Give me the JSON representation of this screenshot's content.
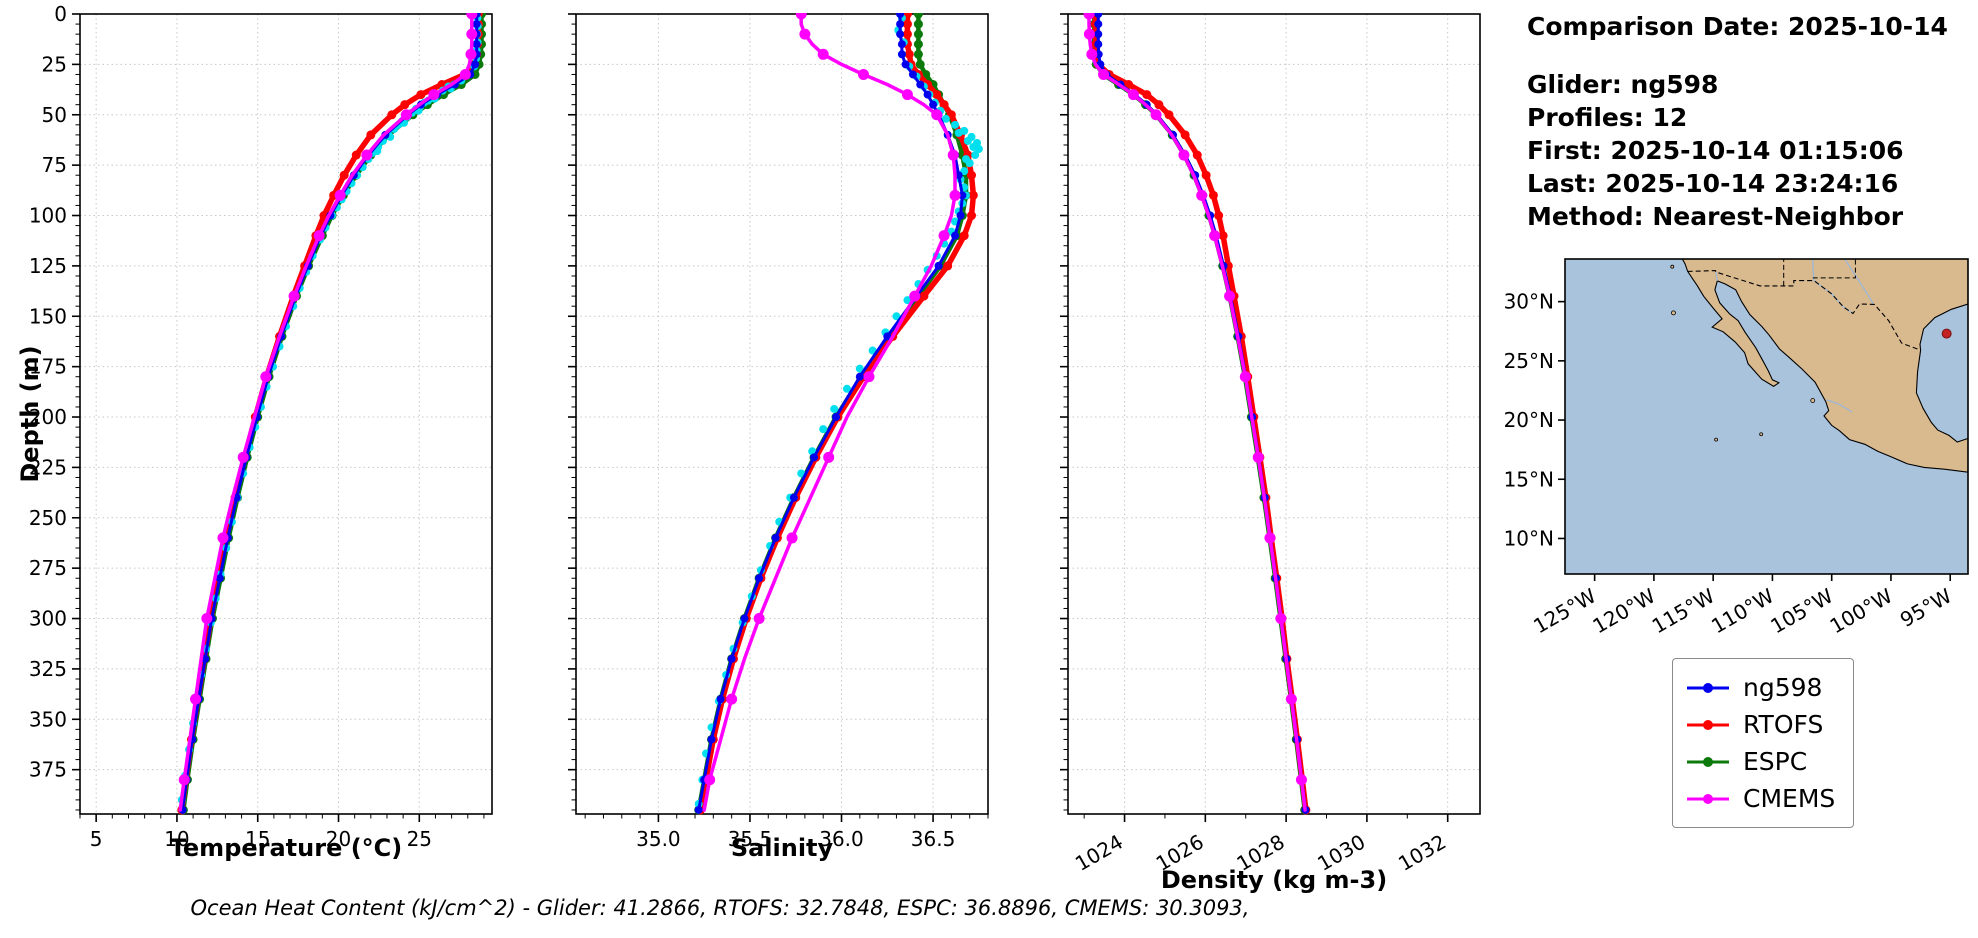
{
  "info": {
    "comparison_date": "Comparison Date: 2025-10-14",
    "glider": "Glider: ng598",
    "profiles": "Profiles: 12",
    "first": "First: 2025-10-14 01:15:06",
    "last": "Last: 2025-10-14 23:24:16",
    "method": "Method: Nearest-Neighbor"
  },
  "caption": "Ocean Heat Content (kJ/cm^2) - Glider: 41.2866,  RTOFS: 32.7848,  ESPC: 36.8896,  CMEMS: 30.3093,",
  "legend": {
    "items": [
      {
        "label": "ng598",
        "color": "#0000ee"
      },
      {
        "label": "RTOFS",
        "color": "#ff0000"
      },
      {
        "label": "ESPC",
        "color": "#0b7a0b"
      },
      {
        "label": "CMEMS",
        "color": "#ff00ff"
      }
    ]
  },
  "map": {
    "ocean_color": "#a9c3dd",
    "land_color": "#d9b98e",
    "extent": {
      "lon": [
        -127.5,
        -93.5
      ],
      "lat": [
        7.0,
        33.6
      ]
    },
    "lat_ticks": [
      {
        "v": 10,
        "label": "10°N"
      },
      {
        "v": 15,
        "label": "15°N"
      },
      {
        "v": 20,
        "label": "20°N"
      },
      {
        "v": 25,
        "label": "25°N"
      },
      {
        "v": 30,
        "label": "30°N"
      }
    ],
    "lon_ticks": [
      {
        "v": -125,
        "label": "125°W"
      },
      {
        "v": -120,
        "label": "120°W"
      },
      {
        "v": -115,
        "label": "115°W"
      },
      {
        "v": -110,
        "label": "110°W"
      },
      {
        "v": -105,
        "label": "105°W"
      },
      {
        "v": -100,
        "label": "100°W"
      },
      {
        "v": -95,
        "label": "95°W"
      }
    ],
    "marker": {
      "lon": -95.3,
      "lat": 27.3,
      "color": "#c22222"
    }
  },
  "chart_data": {
    "type": "line",
    "subtype": "ocean-profile-comparison",
    "depth_label": "Depth (m)",
    "depth_range": [
      0,
      397
    ],
    "depth_tick_values": [
      0,
      25,
      50,
      75,
      100,
      125,
      150,
      175,
      200,
      225,
      250,
      275,
      300,
      325,
      350,
      375
    ],
    "depth_tick_labels": [
      "0",
      "25",
      "50",
      "75",
      "100",
      "125",
      "150",
      "175",
      "200",
      "225",
      "250",
      "275",
      "300",
      "325",
      "350",
      "375"
    ],
    "depths": [
      0,
      5,
      10,
      15,
      20,
      25,
      30,
      35,
      40,
      45,
      50,
      60,
      70,
      80,
      90,
      100,
      110,
      125,
      140,
      160,
      180,
      200,
      220,
      240,
      260,
      280,
      300,
      320,
      340,
      360,
      380,
      395
    ],
    "panels": [
      {
        "id": "temperature",
        "xlabel": "Temperature (°C)",
        "xlim": [
          4.0,
          29.5
        ],
        "xtick_values": [
          5,
          10,
          15,
          20,
          25
        ],
        "xtick_labels": [
          "5",
          "10",
          "15",
          "20",
          "25"
        ],
        "minor_step": 1,
        "tick_rotation": 0
      },
      {
        "id": "salinity",
        "xlabel": "Salinity",
        "xlim": [
          34.55,
          36.8
        ],
        "xtick_values": [
          35.0,
          35.5,
          36.0,
          36.5
        ],
        "xtick_labels": [
          "35.0",
          "35.5",
          "36.0",
          "36.5"
        ],
        "minor_step": 0.1,
        "tick_rotation": 0
      },
      {
        "id": "density",
        "xlabel": "Density (kg m-3)",
        "xlim": [
          1022.6,
          1032.8
        ],
        "xtick_values": [
          1024,
          1026,
          1028,
          1030,
          1032
        ],
        "xtick_labels": [
          "1024",
          "1026",
          "1028",
          "1030",
          "1032"
        ],
        "minor_step": 1,
        "tick_rotation": -30
      }
    ],
    "series": [
      {
        "name": "ng598",
        "color": "#0000ee",
        "lw": 3,
        "marker": 4,
        "marker_every": 1,
        "zorder": 4,
        "temperature": [
          28.55,
          28.55,
          28.55,
          28.55,
          28.55,
          28.45,
          28.15,
          27.2,
          26.1,
          25.1,
          24.3,
          22.9,
          21.85,
          20.95,
          20.2,
          19.5,
          18.9,
          18.1,
          17.35,
          16.45,
          15.65,
          14.95,
          14.3,
          13.7,
          13.15,
          12.65,
          12.15,
          11.75,
          11.35,
          10.95,
          10.6,
          10.35
        ],
        "salinity": [
          36.32,
          36.32,
          36.32,
          36.33,
          36.33,
          36.35,
          36.39,
          36.43,
          36.47,
          36.5,
          36.53,
          36.58,
          36.62,
          36.64,
          36.66,
          36.65,
          36.62,
          36.53,
          36.41,
          36.25,
          36.1,
          35.97,
          35.85,
          35.74,
          35.64,
          35.55,
          35.47,
          35.4,
          35.34,
          35.29,
          35.25,
          35.22
        ],
        "density": [
          1023.35,
          1023.35,
          1023.35,
          1023.35,
          1023.36,
          1023.4,
          1023.55,
          1023.9,
          1024.25,
          1024.55,
          1024.8,
          1025.2,
          1025.5,
          1025.75,
          1025.95,
          1026.12,
          1026.27,
          1026.45,
          1026.62,
          1026.82,
          1027.0,
          1027.16,
          1027.32,
          1027.47,
          1027.61,
          1027.75,
          1027.88,
          1028.01,
          1028.14,
          1028.27,
          1028.39,
          1028.48
        ]
      },
      {
        "name": "RTOFS",
        "color": "#ff0000",
        "lw": 5.5,
        "marker": 4.5,
        "marker_every": 1,
        "zorder": 2,
        "temperature": [
          28.65,
          28.65,
          28.65,
          28.6,
          28.55,
          28.4,
          27.8,
          26.4,
          25.1,
          24.1,
          23.3,
          22.0,
          21.1,
          20.35,
          19.7,
          19.1,
          18.6,
          17.9,
          17.2,
          16.35,
          15.55,
          14.85,
          14.2,
          13.6,
          13.05,
          12.55,
          12.1,
          11.7,
          11.3,
          10.9,
          10.55,
          10.3
        ],
        "salinity": [
          36.36,
          36.36,
          36.36,
          36.36,
          36.37,
          36.38,
          36.42,
          36.47,
          36.52,
          36.56,
          36.6,
          36.65,
          36.69,
          36.71,
          36.72,
          36.71,
          36.67,
          36.58,
          36.45,
          36.28,
          36.12,
          35.98,
          35.86,
          35.75,
          35.65,
          35.56,
          35.48,
          35.41,
          35.35,
          35.3,
          35.26,
          35.23
        ],
        "density": [
          1023.28,
          1023.28,
          1023.28,
          1023.29,
          1023.3,
          1023.35,
          1023.62,
          1024.1,
          1024.55,
          1024.85,
          1025.1,
          1025.5,
          1025.8,
          1026.02,
          1026.2,
          1026.33,
          1026.44,
          1026.57,
          1026.71,
          1026.89,
          1027.05,
          1027.2,
          1027.35,
          1027.5,
          1027.63,
          1027.77,
          1027.9,
          1028.02,
          1028.15,
          1028.28,
          1028.4,
          1028.49
        ]
      },
      {
        "name": "ESPC",
        "color": "#0b7a0b",
        "lw": 4.5,
        "marker": 4.5,
        "marker_every": 1,
        "zorder": 1,
        "temperature": [
          28.85,
          28.85,
          28.85,
          28.85,
          28.8,
          28.7,
          28.45,
          27.6,
          26.5,
          25.5,
          24.6,
          23.1,
          22.0,
          21.1,
          20.3,
          19.6,
          19.0,
          18.15,
          17.4,
          16.5,
          15.7,
          15.0,
          14.35,
          13.75,
          13.2,
          12.7,
          12.2,
          11.8,
          11.4,
          11.0,
          10.65,
          10.4
        ],
        "salinity": [
          36.42,
          36.42,
          36.42,
          36.42,
          36.42,
          36.43,
          36.46,
          36.5,
          36.53,
          36.56,
          36.59,
          36.63,
          36.66,
          36.68,
          36.68,
          36.66,
          36.63,
          36.54,
          36.42,
          36.26,
          36.11,
          35.97,
          35.85,
          35.74,
          35.64,
          35.55,
          35.47,
          35.4,
          35.34,
          35.29,
          35.25,
          35.22
        ],
        "density": [
          1023.25,
          1023.25,
          1023.25,
          1023.25,
          1023.26,
          1023.3,
          1023.47,
          1023.85,
          1024.22,
          1024.52,
          1024.78,
          1025.18,
          1025.48,
          1025.72,
          1025.92,
          1026.09,
          1026.24,
          1026.43,
          1026.6,
          1026.8,
          1026.98,
          1027.14,
          1027.3,
          1027.45,
          1027.59,
          1027.73,
          1027.86,
          1027.99,
          1028.12,
          1028.25,
          1028.37,
          1028.46
        ]
      },
      {
        "name": "CMEMS",
        "color": "#ff00ff",
        "lw": 3.5,
        "marker": 5.5,
        "marker_every": 2,
        "zorder": 5,
        "temperature": [
          28.25,
          28.25,
          28.25,
          28.25,
          28.2,
          28.1,
          27.85,
          27.0,
          25.9,
          25.0,
          24.2,
          22.8,
          21.75,
          20.85,
          20.1,
          19.4,
          18.8,
          18.0,
          17.25,
          16.35,
          15.5,
          14.8,
          14.1,
          13.45,
          12.85,
          12.35,
          11.85,
          11.5,
          11.15,
          10.8,
          10.45,
          10.2
        ],
        "salinity": [
          35.78,
          35.78,
          35.8,
          35.84,
          35.9,
          36.0,
          36.12,
          36.25,
          36.36,
          36.45,
          36.52,
          36.58,
          36.61,
          36.62,
          36.62,
          36.6,
          36.56,
          36.49,
          36.4,
          36.28,
          36.15,
          36.03,
          35.93,
          35.83,
          35.73,
          35.64,
          35.55,
          35.47,
          35.4,
          35.34,
          35.28,
          35.25
        ],
        "density": [
          1023.12,
          1023.12,
          1023.13,
          1023.15,
          1023.19,
          1023.28,
          1023.48,
          1023.86,
          1024.22,
          1024.52,
          1024.78,
          1025.17,
          1025.47,
          1025.71,
          1025.91,
          1026.08,
          1026.23,
          1026.42,
          1026.6,
          1026.8,
          1026.99,
          1027.15,
          1027.31,
          1027.46,
          1027.6,
          1027.74,
          1027.87,
          1028.0,
          1028.13,
          1028.26,
          1028.38,
          1028.47
        ]
      }
    ],
    "scatter": [
      {
        "name": "glider-individual-profiles",
        "panel": "temperature",
        "color": "#00dfee",
        "marker": 4,
        "zorder": 3,
        "points": [
          [
            2,
            28.6
          ],
          [
            6,
            28.62
          ],
          [
            10,
            28.58
          ],
          [
            14,
            28.61
          ],
          [
            18,
            28.55
          ],
          [
            22,
            28.52
          ],
          [
            26,
            28.4
          ],
          [
            30,
            28.1
          ],
          [
            33,
            27.6
          ],
          [
            35,
            27.15
          ],
          [
            36,
            26.8
          ],
          [
            38,
            26.45
          ],
          [
            40,
            26.1
          ],
          [
            41,
            25.9
          ],
          [
            43,
            25.55
          ],
          [
            44,
            25.3
          ],
          [
            46,
            25.05
          ],
          [
            47,
            24.8
          ],
          [
            49,
            24.55
          ],
          [
            51,
            24.25
          ],
          [
            53,
            23.95
          ],
          [
            55,
            23.7
          ],
          [
            57,
            23.45
          ],
          [
            60,
            23.1
          ],
          [
            63,
            22.75
          ],
          [
            66,
            22.45
          ],
          [
            69,
            22.1
          ],
          [
            72,
            21.85
          ],
          [
            76,
            21.5
          ],
          [
            80,
            21.15
          ],
          [
            84,
            20.8
          ],
          [
            88,
            20.5
          ],
          [
            92,
            20.2
          ],
          [
            96,
            19.9
          ],
          [
            100,
            19.6
          ],
          [
            106,
            19.2
          ],
          [
            112,
            18.85
          ],
          [
            120,
            18.4
          ],
          [
            128,
            18.0
          ],
          [
            136,
            17.6
          ],
          [
            145,
            17.2
          ],
          [
            155,
            16.75
          ],
          [
            165,
            16.35
          ],
          [
            175,
            15.95
          ],
          [
            185,
            15.55
          ],
          [
            195,
            15.2
          ],
          [
            205,
            14.85
          ],
          [
            215,
            14.5
          ],
          [
            228,
            14.1
          ],
          [
            240,
            13.75
          ],
          [
            252,
            13.4
          ],
          [
            265,
            13.05
          ],
          [
            278,
            12.7
          ],
          [
            290,
            12.4
          ],
          [
            302,
            12.1
          ],
          [
            315,
            11.8
          ],
          [
            328,
            11.5
          ],
          [
            340,
            11.25
          ],
          [
            352,
            11.0
          ],
          [
            365,
            10.75
          ],
          [
            378,
            10.5
          ],
          [
            390,
            10.3
          ],
          [
            37,
            26.95
          ],
          [
            42,
            25.95
          ],
          [
            48,
            24.95
          ],
          [
            54,
            24.05
          ],
          [
            61,
            23.2
          ],
          [
            68,
            22.4
          ]
        ]
      },
      {
        "name": "glider-individual-profiles",
        "panel": "salinity",
        "color": "#00dfee",
        "marker": 4,
        "zorder": 3,
        "points": [
          [
            2,
            36.33
          ],
          [
            8,
            36.31
          ],
          [
            14,
            36.34
          ],
          [
            20,
            36.33
          ],
          [
            26,
            36.37
          ],
          [
            31,
            36.41
          ],
          [
            36,
            36.45
          ],
          [
            40,
            36.48
          ],
          [
            44,
            36.51
          ],
          [
            48,
            36.54
          ],
          [
            52,
            36.57
          ],
          [
            55,
            36.62
          ],
          [
            58,
            36.67
          ],
          [
            61,
            36.71
          ],
          [
            64,
            36.74
          ],
          [
            67,
            36.75
          ],
          [
            70,
            36.73
          ],
          [
            74,
            36.7
          ],
          [
            78,
            36.67
          ],
          [
            82,
            36.65
          ],
          [
            86,
            36.67
          ],
          [
            90,
            36.68
          ],
          [
            94,
            36.66
          ],
          [
            98,
            36.64
          ],
          [
            103,
            36.62
          ],
          [
            108,
            36.6
          ],
          [
            114,
            36.56
          ],
          [
            120,
            36.52
          ],
          [
            127,
            36.47
          ],
          [
            134,
            36.42
          ],
          [
            142,
            36.36
          ],
          [
            150,
            36.3
          ],
          [
            158,
            36.24
          ],
          [
            167,
            36.17
          ],
          [
            176,
            36.1
          ],
          [
            186,
            36.03
          ],
          [
            196,
            35.96
          ],
          [
            206,
            35.9
          ],
          [
            217,
            35.84
          ],
          [
            228,
            35.78
          ],
          [
            240,
            35.72
          ],
          [
            252,
            35.66
          ],
          [
            264,
            35.61
          ],
          [
            276,
            35.56
          ],
          [
            289,
            35.51
          ],
          [
            302,
            35.46
          ],
          [
            315,
            35.41
          ],
          [
            328,
            35.37
          ],
          [
            341,
            35.33
          ],
          [
            354,
            35.29
          ],
          [
            367,
            35.26
          ],
          [
            380,
            35.24
          ],
          [
            392,
            35.22
          ],
          [
            59,
            36.64
          ],
          [
            63,
            36.69
          ],
          [
            66,
            36.72
          ],
          [
            72,
            36.68
          ]
        ]
      }
    ]
  }
}
